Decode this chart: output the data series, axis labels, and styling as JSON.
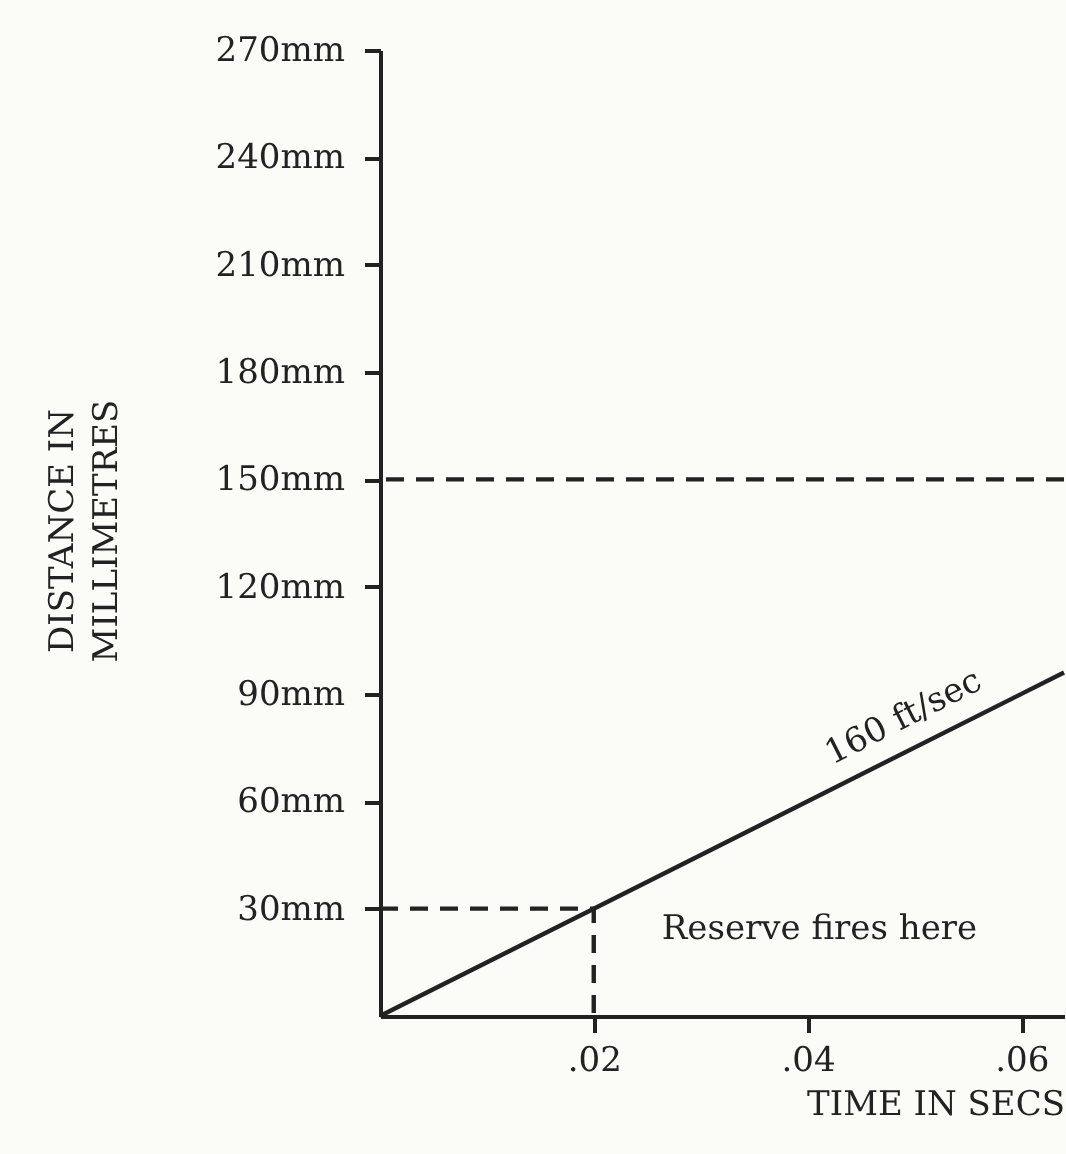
{
  "chart_data": {
    "type": "line",
    "xlabel": "TIME IN SECS",
    "ylabel": "DISTANCE IN\nMILLIMETRES",
    "xlim": [
      0,
      0.064
    ],
    "ylim": [
      0,
      270
    ],
    "xticks": [
      {
        "value": 0.02,
        "label": ".02"
      },
      {
        "value": 0.04,
        "label": ".04"
      },
      {
        "value": 0.06,
        "label": ".06"
      }
    ],
    "yticks": [
      {
        "value": 30,
        "label": "30mm"
      },
      {
        "value": 60,
        "label": "60mm"
      },
      {
        "value": 90,
        "label": "90mm"
      },
      {
        "value": 120,
        "label": "120mm"
      },
      {
        "value": 150,
        "label": "150mm"
      },
      {
        "value": 180,
        "label": "180mm"
      },
      {
        "value": 210,
        "label": "210mm"
      },
      {
        "value": 240,
        "label": "240mm"
      },
      {
        "value": 270,
        "label": "270mm"
      }
    ],
    "series": [
      {
        "color": "#222222",
        "line_style": "solid",
        "x": [
          0,
          0.02,
          0.064
        ],
        "values": [
          0,
          30,
          96
        ]
      },
      {
        "color": "#222222",
        "line_style": "dashed",
        "x": [
          0,
          0.02,
          0.02
        ],
        "values": [
          30,
          30,
          0
        ]
      }
    ],
    "ref_lines": [
      {
        "axis": "y",
        "value": 150,
        "color": "#222222",
        "line_style": "dashed"
      }
    ],
    "annotations": [
      {
        "text": "160 ft/sec",
        "x": 0.052,
        "y": 78
      },
      {
        "text": "Reserve fires here",
        "x": 0.02,
        "y": 30
      }
    ],
    "grid": false
  }
}
